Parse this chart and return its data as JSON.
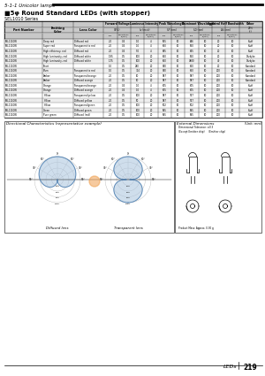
{
  "page_title": "5-1-1 Unicolor lamps",
  "section_title": "■5φ Round Standard LEDs (with stopper)",
  "series_label": "SEL1010 Series",
  "bg_color": "#ffffff",
  "footer_text": "LEDs",
  "footer_num": "219",
  "dir_char_title": "Directional Characteristics (representative example)",
  "ext_dim_title": "External Dimensions",
  "unit_note": "(Unit: mm)",
  "dim_tolerance": "Dimensional Tolerance: ±0.3",
  "except_label": "(Except Emitter chip)",
  "emitter_label": "(Emitter chip)",
  "product_mass": "Product Mass: Approx. 0.30 g",
  "table_rows": [
    [
      "SEL1110W",
      "Deep red",
      "Diffused red",
      "2.0",
      "0.4",
      "1.0",
      "4",
      "655",
      "10",
      "646",
      "10",
      "20",
      "10",
      "Stuff"
    ],
    [
      "SEL1110W",
      "Super red",
      "Transparent to red",
      "2.0",
      "0.4",
      "1.0",
      "4",
      "660",
      "10",
      "650",
      "10",
      "20",
      "10",
      "Stuff"
    ],
    [
      "SEL1110W",
      "High efficiency, red",
      "Diffused red",
      "2.0",
      "0.4",
      "5.0",
      "4",
      "635",
      "10",
      "625",
      "10",
      "20",
      "10",
      "Stuff"
    ],
    [
      "SEL1110W",
      "High luminosity, red",
      "Diffused white",
      "1.95",
      "0.5",
      "100",
      "20",
      "660",
      "10",
      "650",
      "10",
      "20",
      "10",
      "Darkyke"
    ],
    [
      "SEL1110W",
      "High luminosity, red",
      "Diffused white",
      "1.75",
      "0.5",
      "100",
      "20",
      "660",
      "10",
      "4880",
      "10",
      "40",
      "10",
      "Darkyke"
    ],
    [
      "SEL1110W",
      "Short",
      "",
      "1.0",
      "0.5",
      "280",
      "20",
      "870",
      "10",
      "660",
      "10",
      "20",
      "10",
      "Standard"
    ],
    [
      "SEL1110W",
      "Plum",
      "Transparent to red",
      "1.0",
      "0.5",
      "374",
      "20",
      "870",
      "10",
      "660",
      "10",
      "200",
      "10",
      "Standard"
    ],
    [
      "SEL1110W",
      "Amber",
      "Transparent/orange",
      "2.0",
      "0.5",
      "10",
      "20",
      "587",
      "10",
      "587",
      "10",
      "200",
      "10",
      "Standard"
    ],
    [
      "SEL1110W",
      "Amber",
      "Diffused orange",
      "2.0",
      "0.5",
      "10",
      "20",
      "587",
      "10",
      "587",
      "10",
      "200",
      "10",
      "Standard"
    ],
    [
      "SEL1110W",
      "Orange",
      "Transparent/orange",
      "2.0",
      "0.4",
      "1.0",
      "4",
      "605",
      "10",
      "605",
      "10",
      "200",
      "10",
      "Stuff"
    ],
    [
      "SEL1110W",
      "Orange",
      "Diffused orange",
      "2.0",
      "0.4",
      "1.0",
      "4",
      "605",
      "10",
      "605",
      "10",
      "200",
      "10",
      "Stuff"
    ],
    [
      "SEL1110W",
      "Yellow",
      "Transparent/yellow",
      "2.0",
      "0.5",
      "100",
      "20",
      "587",
      "10",
      "577",
      "10",
      "200",
      "10",
      "Stuff"
    ],
    [
      "SEL1110W",
      "Yellow",
      "Diffused yellow",
      "2.0",
      "0.5",
      "50",
      "20",
      "587",
      "10",
      "577",
      "10",
      "200",
      "10",
      "Stuff"
    ],
    [
      "SEL1110W",
      "Yellow",
      "Transparent/green",
      "2.0",
      "0.5",
      "100",
      "20",
      "502",
      "10",
      "502",
      "10",
      "200",
      "10",
      "Stuff"
    ],
    [
      "SEL1110W",
      "Green",
      "Diffused green",
      "2.0",
      "0.5",
      "100",
      "20",
      "565",
      "10",
      "565",
      "10",
      "200",
      "10",
      "Stuff"
    ],
    [
      "SEL1110W",
      "Pure green",
      "Diffused (red)",
      "2.0",
      "0.5",
      "100",
      "20",
      "565",
      "10",
      "565",
      "10",
      "200",
      "10",
      "Stuff"
    ]
  ]
}
